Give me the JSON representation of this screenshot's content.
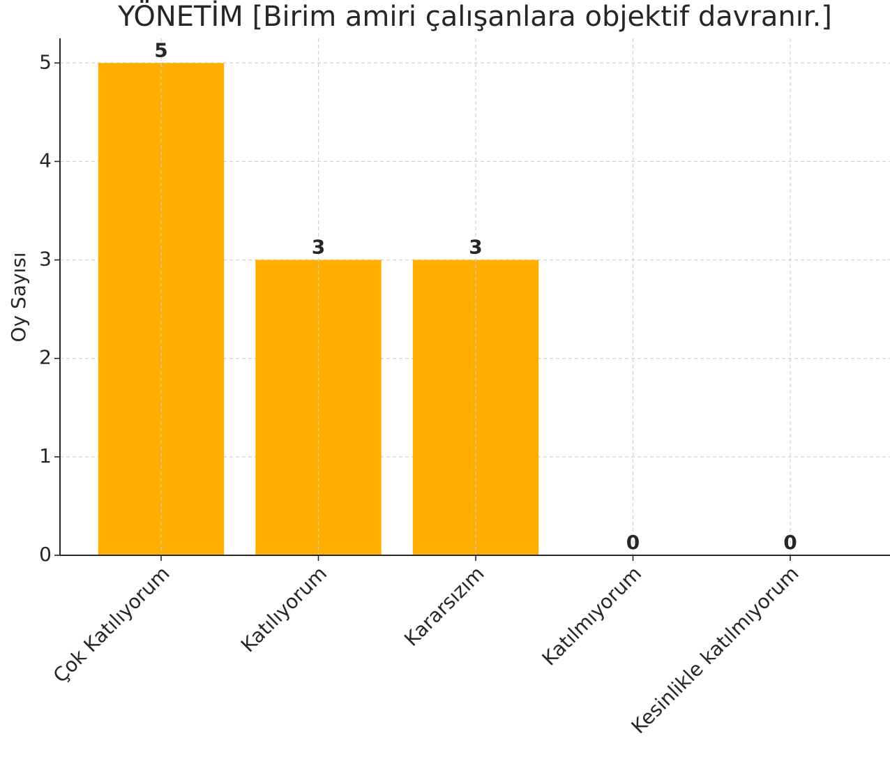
{
  "chart_data": {
    "type": "bar",
    "title": "YÖNETİM [Birim amiri çalışanlara objektif davranır.]",
    "y_label": "Oy Sayısı",
    "categories": [
      "Çok Katılıyorum",
      "Katılıyorum",
      "Kararsızım",
      "Katılmıyorum",
      "Kesinlikle katılmıyorum"
    ],
    "values": [
      5,
      3,
      3,
      0,
      0
    ],
    "color": "#ffae00",
    "ylim": [
      0,
      5.25
    ],
    "yticks": [
      0,
      1,
      2,
      3,
      4,
      5
    ],
    "grid": true
  }
}
